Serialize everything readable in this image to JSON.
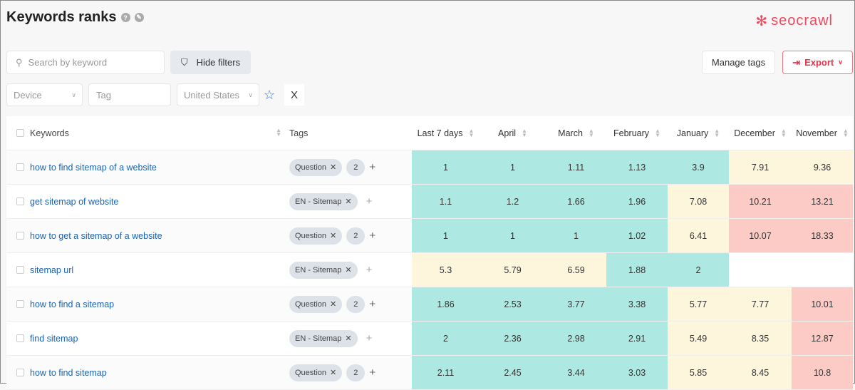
{
  "header": {
    "title": "Keywords ranks",
    "help_icon": "question-circle-icon",
    "edit_icon": "pencil-circle-icon",
    "logo": "seocrawl"
  },
  "toolbar": {
    "search_placeholder": "Search by keyword",
    "hide_filters": "Hide filters",
    "manage_tags": "Manage tags",
    "export": "Export"
  },
  "filters": {
    "device": "Device",
    "tag": "Tag",
    "country": "United States",
    "clear": "X"
  },
  "colors": {
    "good": "#ade9e2",
    "mid": "#fdf5dc",
    "bad": "#fccbc5",
    "none": "#ffffff",
    "accent": "#e8344c",
    "link": "#1a63b5"
  },
  "table": {
    "columns": [
      "Keywords",
      "Tags",
      "Last 7 days",
      "April",
      "March",
      "February",
      "January",
      "December",
      "November"
    ],
    "rows": [
      {
        "keyword": "how to find sitemap of a website",
        "tag": "Question",
        "more": "2",
        "values": [
          "1",
          "1",
          "1.11",
          "1.13",
          "3.9",
          "7.91",
          "9.36"
        ],
        "levels": [
          "good",
          "good",
          "good",
          "good",
          "good",
          "mid",
          "mid"
        ]
      },
      {
        "keyword": "get sitemap of website",
        "tag": "EN - Sitemap",
        "more": "",
        "values": [
          "1.1",
          "1.2",
          "1.66",
          "1.96",
          "7.08",
          "10.21",
          "13.21"
        ],
        "levels": [
          "good",
          "good",
          "good",
          "good",
          "mid",
          "bad",
          "bad"
        ]
      },
      {
        "keyword": "how to get a sitemap of a website",
        "tag": "Question",
        "more": "2",
        "values": [
          "1",
          "1",
          "1",
          "1.02",
          "6.41",
          "10.07",
          "18.33"
        ],
        "levels": [
          "good",
          "good",
          "good",
          "good",
          "mid",
          "bad",
          "bad"
        ]
      },
      {
        "keyword": "sitemap url",
        "tag": "EN - Sitemap",
        "more": "",
        "values": [
          "5.3",
          "5.79",
          "6.59",
          "1.88",
          "2",
          "",
          ""
        ],
        "levels": [
          "mid",
          "mid",
          "mid",
          "good",
          "good",
          "none",
          "none"
        ]
      },
      {
        "keyword": "how to find a sitemap",
        "tag": "Question",
        "more": "2",
        "values": [
          "1.86",
          "2.53",
          "3.77",
          "3.38",
          "5.77",
          "7.77",
          "10.01"
        ],
        "levels": [
          "good",
          "good",
          "good",
          "good",
          "mid",
          "mid",
          "bad"
        ]
      },
      {
        "keyword": "find sitemap",
        "tag": "EN - Sitemap",
        "more": "",
        "values": [
          "2",
          "2.36",
          "2.98",
          "2.91",
          "5.49",
          "8.35",
          "12.87"
        ],
        "levels": [
          "good",
          "good",
          "good",
          "good",
          "mid",
          "mid",
          "bad"
        ]
      },
      {
        "keyword": "how to find sitemap",
        "tag": "Question",
        "more": "2",
        "values": [
          "2.11",
          "2.45",
          "3.44",
          "3.03",
          "5.85",
          "8.45",
          "10.8"
        ],
        "levels": [
          "good",
          "good",
          "good",
          "good",
          "mid",
          "mid",
          "bad"
        ]
      }
    ]
  }
}
